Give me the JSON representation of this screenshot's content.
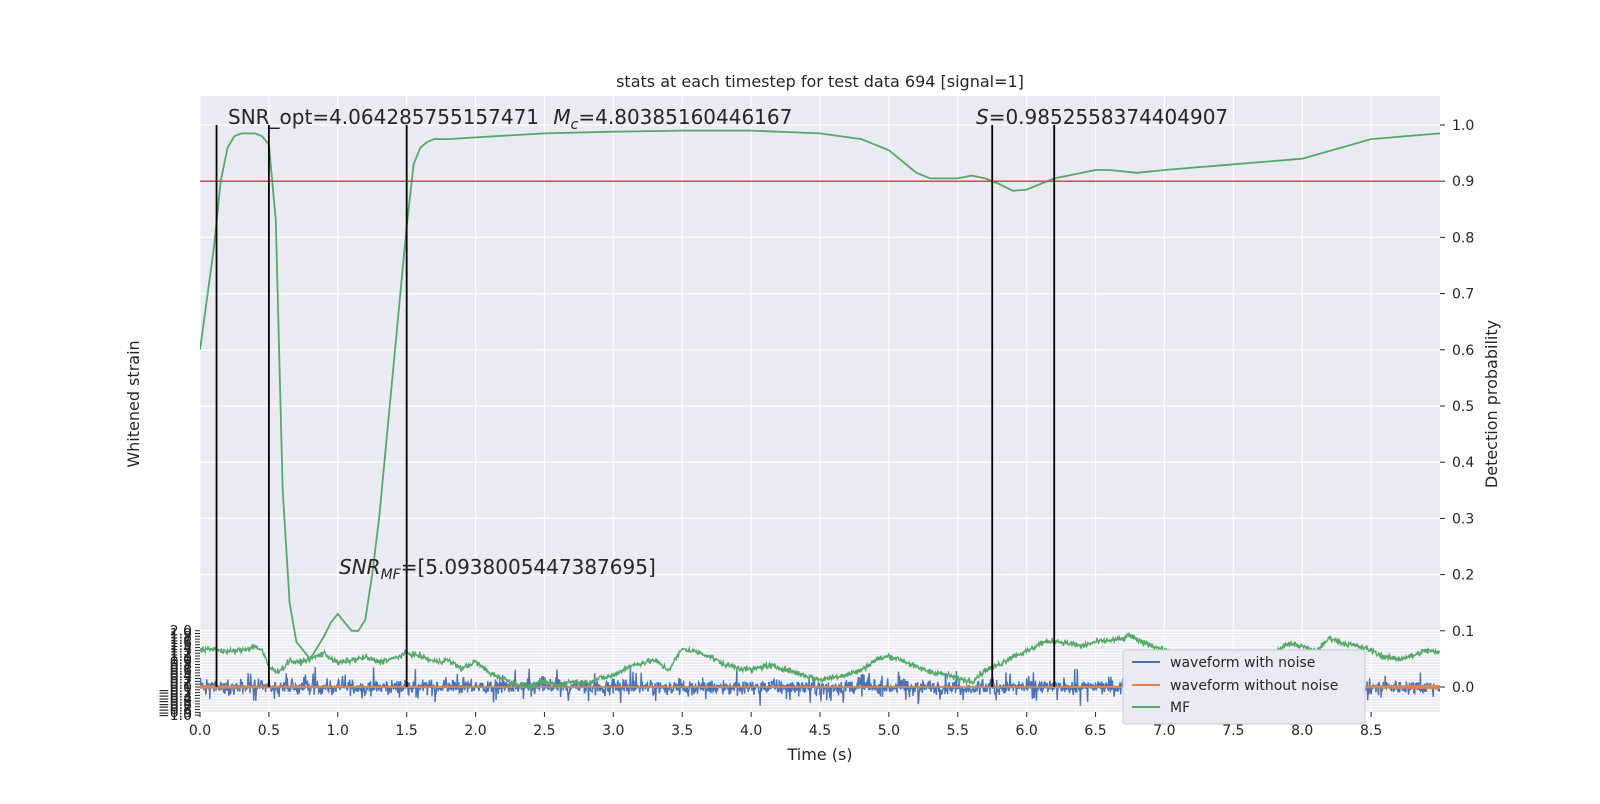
{
  "chart_data": {
    "type": "line",
    "title": "stats at each timestep for test data 694 [signal=1]",
    "xlabel": "Time (s)",
    "ylabel_left": "Whitened strain",
    "ylabel_right": "Detection probability",
    "xlim": [
      0.0,
      9.0
    ],
    "ylim_left": [
      -1.0,
      2.0
    ],
    "ylim_right": [
      0.0,
      1.0
    ],
    "x_ticks": [
      "0.0",
      "0.5",
      "1.0",
      "1.5",
      "2.0",
      "2.5",
      "3.0",
      "3.5",
      "4.0",
      "4.5",
      "5.0",
      "5.5",
      "6.0",
      "6.5",
      "7.0",
      "7.5",
      "8.0",
      "8.5"
    ],
    "y_left_ticks": [
      "−1.0",
      "−0.9",
      "−0.8",
      "−0.7",
      "−0.6",
      "−0.5",
      "−0.4",
      "−0.3",
      "−0.2",
      "−0.1",
      "0.0",
      "0.1",
      "0.2",
      "0.3",
      "0.4",
      "0.5",
      "0.6",
      "0.7",
      "0.8",
      "0.9",
      "1.0",
      "1.1",
      "1.2",
      "1.3",
      "1.4",
      "1.5",
      "1.6",
      "1.7",
      "1.8",
      "1.9",
      "2.0"
    ],
    "y_right_ticks": [
      "0.0",
      "0.1",
      "0.2",
      "0.3",
      "0.4",
      "0.5",
      "0.6",
      "0.7",
      "0.8",
      "0.9",
      "1.0"
    ],
    "grid": true,
    "legend_position": "bottom-right",
    "threshold": 0.9,
    "vlines": [
      0.12,
      0.5,
      1.5,
      5.75,
      6.2
    ],
    "annotations": {
      "snr_opt": "SNR_opt=4.064285755157471",
      "mc_symbol": "M",
      "mc_sub": "c",
      "mc_value": "=4.80385160446167",
      "s_symbol": "S",
      "s_value": "=0.9852558374404907",
      "snr_mf_symbol": "SNR",
      "snr_mf_sub": "MF",
      "snr_mf_value": "=[5.0938005447387695]"
    },
    "series": [
      {
        "name": "waveform with noise",
        "color": "#4c72b0",
        "axis": "left"
      },
      {
        "name": "waveform without noise",
        "color": "#dd8452",
        "axis": "left"
      },
      {
        "name": "MF",
        "color": "#55a868",
        "axis": "left"
      }
    ],
    "detection_probability": {
      "color": "#55a868",
      "x": [
        0.0,
        0.1,
        0.15,
        0.2,
        0.25,
        0.3,
        0.35,
        0.4,
        0.45,
        0.5,
        0.55,
        0.6,
        0.65,
        0.7,
        0.75,
        0.8,
        0.85,
        0.9,
        0.95,
        1.0,
        1.05,
        1.1,
        1.15,
        1.2,
        1.25,
        1.3,
        1.35,
        1.4,
        1.45,
        1.5,
        1.55,
        1.6,
        1.65,
        1.7,
        1.8,
        2.0,
        2.5,
        3.0,
        3.5,
        4.0,
        4.5,
        4.8,
        5.0,
        5.1,
        5.2,
        5.3,
        5.5,
        5.6,
        5.7,
        5.8,
        5.9,
        6.0,
        6.1,
        6.2,
        6.3,
        6.5,
        6.6,
        6.8,
        7.0,
        7.5,
        8.0,
        8.5,
        9.0
      ],
      "y": [
        0.6,
        0.78,
        0.9,
        0.96,
        0.98,
        0.985,
        0.985,
        0.985,
        0.98,
        0.965,
        0.83,
        0.35,
        0.15,
        0.08,
        0.065,
        0.05,
        0.07,
        0.09,
        0.115,
        0.13,
        0.115,
        0.1,
        0.1,
        0.12,
        0.2,
        0.3,
        0.43,
        0.56,
        0.69,
        0.82,
        0.93,
        0.96,
        0.97,
        0.975,
        0.975,
        0.978,
        0.985,
        0.988,
        0.99,
        0.99,
        0.985,
        0.975,
        0.955,
        0.935,
        0.915,
        0.905,
        0.905,
        0.91,
        0.905,
        0.895,
        0.883,
        0.885,
        0.895,
        0.905,
        0.91,
        0.92,
        0.92,
        0.915,
        0.92,
        0.93,
        0.94,
        0.975,
        0.985
      ]
    },
    "mf_envelope": {
      "x": [
        0.0,
        0.1,
        0.2,
        0.3,
        0.4,
        0.45,
        0.5,
        0.55,
        0.6,
        0.65,
        0.7,
        0.8,
        0.9,
        1.0,
        1.1,
        1.2,
        1.3,
        1.4,
        1.5,
        1.6,
        1.7,
        1.8,
        1.9,
        2.0,
        2.1,
        2.2,
        2.3,
        2.4,
        2.5,
        2.6,
        2.7,
        2.8,
        2.9,
        3.0,
        3.1,
        3.2,
        3.3,
        3.4,
        3.5,
        3.6,
        3.7,
        3.8,
        3.9,
        4.0,
        4.1,
        4.2,
        4.3,
        4.4,
        4.5,
        4.6,
        4.7,
        4.8,
        4.9,
        5.0,
        5.1,
        5.2,
        5.3,
        5.4,
        5.5,
        5.6,
        5.7,
        5.8,
        5.9,
        6.0,
        6.1,
        6.2,
        6.3,
        6.4,
        6.5,
        6.6,
        6.7,
        6.75,
        6.8,
        6.9,
        7.0,
        7.1,
        7.2,
        7.3,
        7.4,
        7.5,
        7.6,
        7.7,
        7.8,
        7.9,
        8.0,
        8.1,
        8.2,
        8.3,
        8.4,
        8.5,
        8.6,
        8.7,
        8.8,
        8.9,
        9.0
      ],
      "y": [
        1.3,
        1.35,
        1.25,
        1.3,
        1.45,
        1.3,
        0.7,
        0.55,
        0.65,
        0.95,
        0.85,
        1.0,
        1.2,
        0.85,
        0.95,
        1.05,
        0.9,
        1.0,
        1.2,
        1.1,
        0.9,
        0.95,
        0.65,
        0.9,
        0.5,
        0.3,
        0.1,
        0.0,
        0.2,
        0.05,
        0.2,
        0.15,
        0.3,
        0.4,
        0.7,
        0.85,
        0.95,
        0.6,
        1.35,
        1.25,
        1.1,
        0.8,
        0.7,
        0.6,
        0.75,
        0.7,
        0.55,
        0.4,
        0.25,
        0.35,
        0.45,
        0.6,
        0.95,
        1.1,
        0.95,
        0.7,
        0.55,
        0.45,
        0.3,
        0.2,
        0.6,
        0.8,
        1.1,
        1.25,
        1.55,
        1.65,
        1.55,
        1.45,
        1.6,
        1.65,
        1.7,
        1.85,
        1.65,
        1.5,
        1.3,
        1.05,
        0.6,
        0.4,
        0.55,
        0.35,
        0.6,
        0.9,
        1.2,
        1.55,
        1.45,
        1.25,
        1.75,
        1.55,
        1.45,
        1.3,
        1.05,
        1.0,
        1.1,
        1.3,
        1.2
      ]
    },
    "signal_envelope": {
      "x": [
        0.0,
        0.5,
        1.0,
        2.0,
        3.0,
        4.0,
        5.0,
        6.0,
        7.0,
        8.0,
        8.5,
        8.8,
        9.0
      ],
      "y": [
        0.04,
        0.025,
        0.015,
        0.012,
        0.01,
        0.01,
        0.01,
        0.012,
        0.015,
        0.02,
        0.03,
        0.045,
        0.05
      ]
    }
  }
}
